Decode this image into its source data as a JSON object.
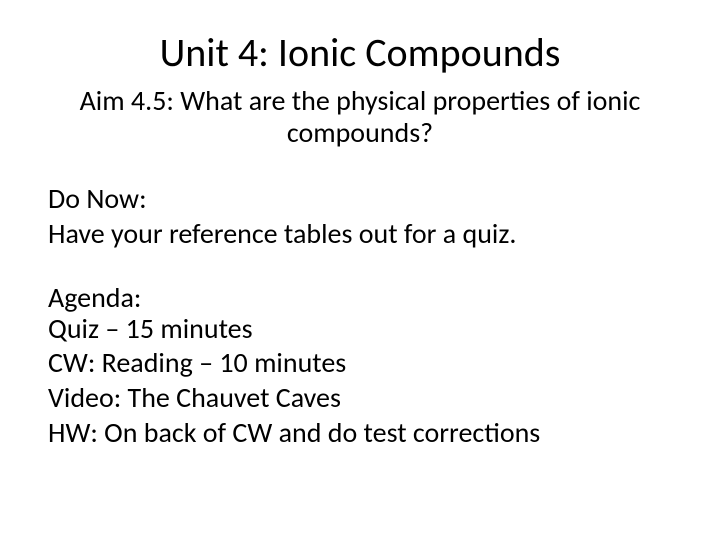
{
  "title": "Unit 4: Ionic Compounds",
  "aim": "Aim 4.5: What are the physical properties of ionic compounds?",
  "doNow": {
    "heading": "Do Now:",
    "line": "Have your reference tables out for a quiz."
  },
  "agenda": {
    "heading": "Agenda:",
    "items": [
      "Quiz – 15 minutes",
      "CW: Reading – 10 minutes",
      "Video: The Chauvet Caves",
      "HW: On back of CW and do test corrections"
    ]
  },
  "colors": {
    "background": "#ffffff",
    "text": "#000000"
  },
  "typography": {
    "title_fontsize": 40,
    "aim_fontsize": 28,
    "body_fontsize": 28,
    "font_family": "Calibri"
  }
}
